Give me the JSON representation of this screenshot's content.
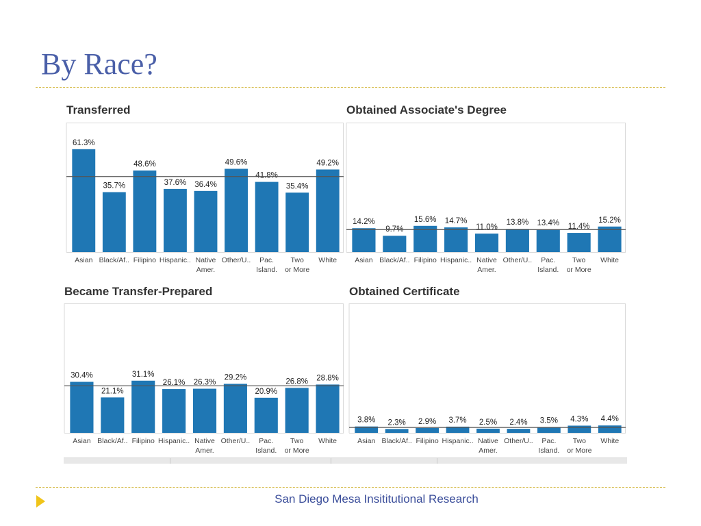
{
  "slide": {
    "title": "By Race?",
    "footer": "San Diego Mesa Insititutional Research"
  },
  "colors": {
    "bar": "#1f77b4",
    "title": "#4a5fa8",
    "rule": "#d4b840",
    "accent": "#f0c419",
    "refline": "#555555"
  },
  "chart_data": [
    {
      "type": "bar",
      "title": "Transferred",
      "categories": [
        "Asian",
        "Black/Af..",
        "Filipino",
        "Hispanic..",
        "Native Amer.",
        "Other/U..",
        "Pac. Island.",
        "Two or More",
        "White"
      ],
      "values": [
        61.3,
        35.7,
        48.6,
        37.6,
        36.4,
        49.6,
        41.8,
        35.4,
        49.2
      ],
      "labels": [
        "61.3%",
        "35.7%",
        "48.6%",
        "37.6%",
        "36.4%",
        "49.6%",
        "41.8%",
        "35.4%",
        "49.2%"
      ],
      "reference_line": 45.0,
      "ylim": [
        0,
        70
      ]
    },
    {
      "type": "bar",
      "title": "Obtained Associate's Degree",
      "categories": [
        "Asian",
        "Black/Af..",
        "Filipino",
        "Hispanic..",
        "Native Amer.",
        "Other/U..",
        "Pac. Island.",
        "Two or More",
        "White"
      ],
      "values": [
        14.2,
        9.7,
        15.6,
        14.7,
        11.0,
        13.8,
        13.4,
        11.4,
        15.2
      ],
      "labels": [
        "14.2%",
        "9.7%",
        "15.6%",
        "14.7%",
        "11.0%",
        "13.8%",
        "13.4%",
        "11.4%",
        "15.2%"
      ],
      "reference_line": 13.4,
      "ylim": [
        0,
        70
      ]
    },
    {
      "type": "bar",
      "title": "Became Transfer-Prepared",
      "categories": [
        "Asian",
        "Black/Af..",
        "Filipino",
        "Hispanic..",
        "Native Amer.",
        "Other/U..",
        "Pac. Island.",
        "Two or More",
        "White"
      ],
      "values": [
        30.4,
        21.1,
        31.1,
        26.1,
        26.3,
        29.2,
        20.9,
        26.8,
        28.8
      ],
      "labels": [
        "30.4%",
        "21.1%",
        "31.1%",
        "26.1%",
        "26.3%",
        "29.2%",
        "20.9%",
        "26.8%",
        "28.8%"
      ],
      "reference_line": 28.0,
      "ylim": [
        0,
        70
      ]
    },
    {
      "type": "bar",
      "title": "Obtained Certificate",
      "categories": [
        "Asian",
        "Black/Af..",
        "Filipino",
        "Hispanic..",
        "Native Amer.",
        "Other/U..",
        "Pac. Island.",
        "Two or More",
        "White"
      ],
      "values": [
        3.8,
        2.3,
        2.9,
        3.7,
        2.5,
        2.4,
        3.5,
        4.3,
        4.4
      ],
      "labels": [
        "3.8%",
        "2.3%",
        "2.9%",
        "3.7%",
        "2.5%",
        "2.4%",
        "3.5%",
        "4.3%",
        "4.4%"
      ],
      "reference_line": 3.2,
      "ylim": [
        0,
        70
      ]
    }
  ]
}
